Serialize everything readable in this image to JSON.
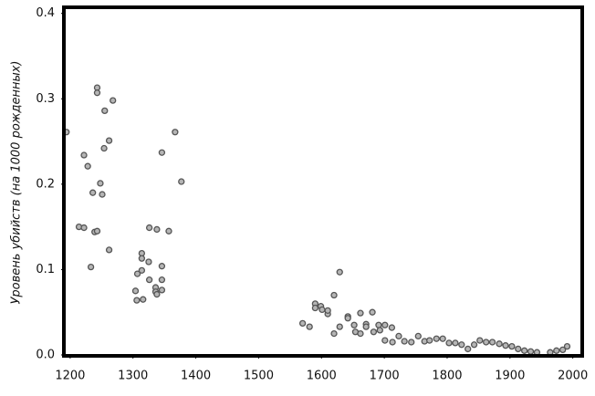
{
  "chart_data": {
    "type": "scatter",
    "y_label": "Уровень убийств (на 1000 рожденных)",
    "x": [
      1194,
      1214,
      1222,
      1222,
      1228,
      1233,
      1236,
      1239,
      1243,
      1243,
      1243,
      1248,
      1251,
      1254,
      1255,
      1262,
      1262,
      1268,
      1304,
      1306,
      1307,
      1314,
      1314,
      1314,
      1316,
      1325,
      1326,
      1326,
      1336,
      1336,
      1338,
      1338,
      1346,
      1346,
      1346,
      1346,
      1357,
      1367,
      1377,
      1570,
      1581,
      1590,
      1590,
      1599,
      1601,
      1610,
      1610,
      1620,
      1620,
      1629,
      1629,
      1642,
      1642,
      1652,
      1654,
      1662,
      1662,
      1671,
      1671,
      1681,
      1683,
      1691,
      1693,
      1701,
      1701,
      1712,
      1713,
      1723,
      1732,
      1743,
      1754,
      1764,
      1772,
      1783,
      1793,
      1803,
      1813,
      1823,
      1833,
      1843,
      1852,
      1862,
      1872,
      1883,
      1893,
      1903,
      1913,
      1923,
      1933,
      1943,
      1964,
      1974,
      1984,
      1991
    ],
    "values": [
      0.261,
      0.15,
      0.149,
      0.234,
      0.221,
      0.103,
      0.19,
      0.144,
      0.145,
      0.313,
      0.307,
      0.201,
      0.188,
      0.242,
      0.286,
      0.251,
      0.123,
      0.298,
      0.075,
      0.064,
      0.095,
      0.119,
      0.113,
      0.099,
      0.065,
      0.109,
      0.149,
      0.088,
      0.079,
      0.074,
      0.147,
      0.071,
      0.237,
      0.104,
      0.088,
      0.076,
      0.145,
      0.261,
      0.203,
      0.037,
      0.033,
      0.06,
      0.055,
      0.057,
      0.053,
      0.048,
      0.052,
      0.07,
      0.025,
      0.097,
      0.033,
      0.045,
      0.043,
      0.035,
      0.027,
      0.049,
      0.025,
      0.036,
      0.033,
      0.05,
      0.027,
      0.035,
      0.029,
      0.035,
      0.017,
      0.032,
      0.015,
      0.022,
      0.016,
      0.015,
      0.022,
      0.016,
      0.017,
      0.019,
      0.019,
      0.014,
      0.014,
      0.012,
      0.007,
      0.012,
      0.017,
      0.015,
      0.015,
      0.013,
      0.011,
      0.01,
      0.007,
      0.005,
      0.004,
      0.003,
      0.003,
      0.005,
      0.006,
      0.01
    ],
    "color": "#b5b5b5",
    "xlim": [
      1190,
      2015
    ],
    "ylim": [
      0,
      0.405
    ],
    "xticks": [
      1200,
      1300,
      1400,
      1500,
      1600,
      1700,
      1800,
      1900,
      2000
    ],
    "yticks": [
      {
        "value": 0,
        "label": "0.0"
      },
      0.1,
      0.2,
      0.3,
      0.4
    ]
  }
}
